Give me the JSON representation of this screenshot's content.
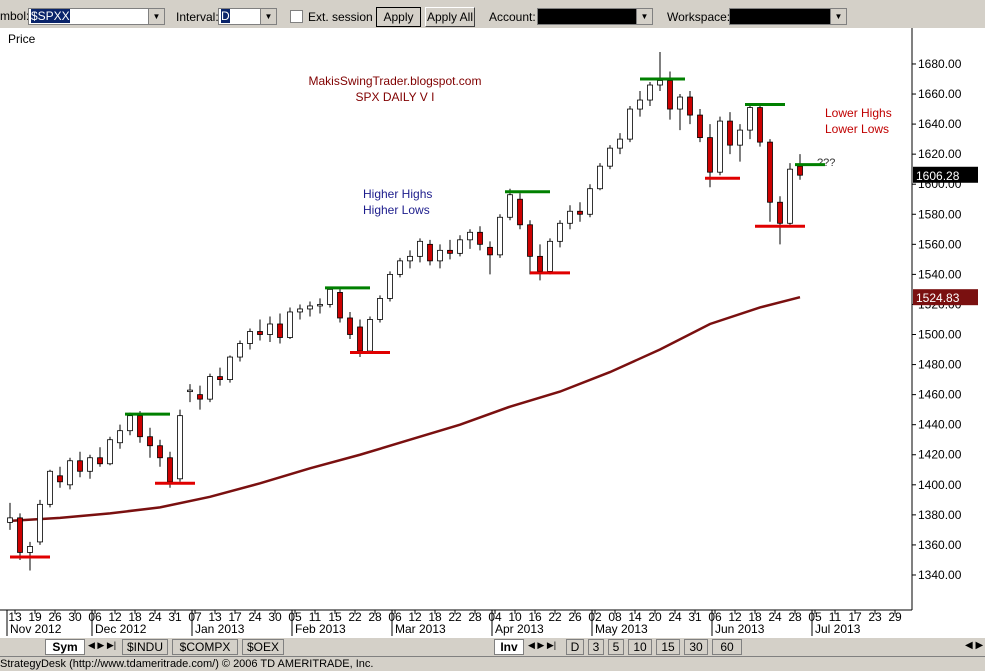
{
  "toolbar": {
    "symbol_label": "mbol:",
    "symbol": "$SPXX",
    "interval_label": "Interval:",
    "interval": "D",
    "ext_session": "Ext. session",
    "apply": "Apply",
    "apply_all": "Apply All",
    "account_label": "Account:",
    "workspace_label": "Workspace:"
  },
  "tabs": {
    "left": [
      "Sym",
      "$INDU",
      "$COMPX",
      "$OEX"
    ],
    "inv": "Inv",
    "intervals": [
      "D",
      "3",
      "5",
      "10",
      "15",
      "30",
      "60"
    ]
  },
  "status": "StrategyDesk (http://www.tdameritrade.com/) © 2006 TD AMERITRADE, Inc.",
  "chart_data": {
    "type": "candlestick",
    "y_label": "Price",
    "annotations": {
      "blog": "MakisSwingTrader.blogspot.com",
      "title": "SPX DAILY  V I",
      "higher_highs": "Higher Highs",
      "higher_lows": "Higher Lows",
      "lower_highs": "Lower Highs",
      "lower_lows": "Lower Lows",
      "question": "???"
    },
    "up_color": "#ffffff",
    "down_color": "#cc0000",
    "x": [
      0,
      2,
      4,
      6,
      8,
      10,
      12,
      14,
      16,
      18,
      20,
      22,
      24,
      26,
      28,
      30,
      32,
      34,
      36,
      38,
      40,
      42,
      44,
      46,
      48,
      50,
      52,
      54,
      56,
      58,
      60,
      62,
      64,
      66,
      68,
      70,
      72,
      74,
      76,
      78,
      80,
      82,
      84,
      86,
      88,
      90,
      92,
      94,
      96,
      98,
      100,
      102,
      104,
      106,
      108,
      110,
      112,
      114,
      116,
      118,
      120,
      122,
      124,
      126,
      128,
      130,
      132,
      134,
      136,
      138,
      140,
      142,
      144,
      146,
      148,
      150,
      152,
      154,
      156,
      158
    ],
    "open": [
      1375,
      1378,
      1355,
      1362,
      1387,
      1406,
      1400,
      1416,
      1409,
      1418,
      1414,
      1428,
      1436,
      1446,
      1432,
      1426,
      1418,
      1404,
      1462,
      1460,
      1457,
      1472,
      1470,
      1485,
      1494,
      1502,
      1500,
      1507,
      1498,
      1515,
      1517,
      1519,
      1520,
      1528,
      1511,
      1505,
      1489,
      1510,
      1524,
      1540,
      1549,
      1552,
      1560,
      1549,
      1556,
      1554,
      1563,
      1568,
      1558,
      1553,
      1578,
      1590,
      1573,
      1552,
      1542,
      1562,
      1574,
      1582,
      1580,
      1597,
      1612,
      1624,
      1630,
      1650,
      1656,
      1666,
      1669,
      1650,
      1658,
      1646,
      1631,
      1608,
      1642,
      1626,
      1636,
      1651,
      1628,
      1588,
      1574,
      1612
    ],
    "high": [
      1388,
      1381,
      1362,
      1390,
      1410,
      1412,
      1418,
      1422,
      1420,
      1425,
      1432,
      1440,
      1448,
      1449,
      1438,
      1430,
      1422,
      1450,
      1467,
      1466,
      1474,
      1478,
      1486,
      1496,
      1504,
      1510,
      1512,
      1514,
      1518,
      1520,
      1522,
      1524,
      1531,
      1531,
      1515,
      1510,
      1512,
      1526,
      1542,
      1551,
      1556,
      1564,
      1563,
      1560,
      1563,
      1566,
      1570,
      1572,
      1562,
      1580,
      1597,
      1594,
      1576,
      1560,
      1564,
      1576,
      1586,
      1588,
      1600,
      1614,
      1626,
      1634,
      1652,
      1662,
      1668,
      1688,
      1675,
      1660,
      1662,
      1650,
      1640,
      1645,
      1648,
      1640,
      1652,
      1654,
      1630,
      1592,
      1614,
      1620
    ],
    "low": [
      1370,
      1350,
      1343,
      1360,
      1385,
      1398,
      1397,
      1405,
      1404,
      1412,
      1413,
      1424,
      1433,
      1428,
      1418,
      1412,
      1398,
      1402,
      1455,
      1450,
      1455,
      1466,
      1468,
      1482,
      1490,
      1496,
      1495,
      1494,
      1497,
      1510,
      1512,
      1514,
      1518,
      1508,
      1497,
      1485,
      1488,
      1508,
      1522,
      1538,
      1544,
      1548,
      1546,
      1544,
      1550,
      1552,
      1557,
      1556,
      1540,
      1551,
      1576,
      1570,
      1540,
      1536,
      1540,
      1558,
      1570,
      1575,
      1578,
      1596,
      1610,
      1620,
      1628,
      1645,
      1652,
      1662,
      1643,
      1636,
      1640,
      1628,
      1598,
      1606,
      1620,
      1615,
      1630,
      1625,
      1575,
      1560,
      1573,
      1603
    ],
    "close": [
      1378,
      1355,
      1359,
      1387,
      1409,
      1402,
      1416,
      1409,
      1418,
      1414,
      1430,
      1436,
      1446,
      1432,
      1426,
      1418,
      1402,
      1446,
      1463,
      1457,
      1472,
      1470,
      1485,
      1494,
      1502,
      1500,
      1507,
      1498,
      1515,
      1517,
      1519,
      1520,
      1530,
      1511,
      1500,
      1489,
      1510,
      1524,
      1540,
      1549,
      1552,
      1562,
      1549,
      1556,
      1554,
      1563,
      1568,
      1560,
      1553,
      1578,
      1593,
      1573,
      1552,
      1542,
      1562,
      1574,
      1582,
      1580,
      1597,
      1612,
      1624,
      1630,
      1650,
      1656,
      1666,
      1669,
      1650,
      1658,
      1646,
      1631,
      1608,
      1642,
      1626,
      1636,
      1651,
      1628,
      1588,
      1574,
      1610,
      1606
    ],
    "last_price": 1606.28,
    "moving_average": {
      "color": "#7a1010",
      "x": [
        0,
        10,
        20,
        30,
        40,
        50,
        60,
        70,
        80,
        90,
        100,
        110,
        120,
        130,
        140,
        150,
        158
      ],
      "values": [
        1376,
        1378,
        1381,
        1385,
        1392,
        1401,
        1411,
        1420,
        1430,
        1440,
        1452,
        1462,
        1475,
        1490,
        1507,
        1518,
        1524.83
      ]
    },
    "levels": [
      {
        "value": 1352,
        "x0": 0,
        "x1": 8,
        "color": "#e00000"
      },
      {
        "value": 1447,
        "x0": 23,
        "x1": 32,
        "color": "#008000"
      },
      {
        "value": 1401,
        "x0": 29,
        "x1": 37,
        "color": "#e00000"
      },
      {
        "value": 1531,
        "x0": 63,
        "x1": 72,
        "color": "#008000"
      },
      {
        "value": 1488,
        "x0": 68,
        "x1": 76,
        "color": "#e00000"
      },
      {
        "value": 1595,
        "x0": 99,
        "x1": 108,
        "color": "#008000"
      },
      {
        "value": 1541,
        "x0": 104,
        "x1": 112,
        "color": "#e00000"
      },
      {
        "value": 1670,
        "x0": 126,
        "x1": 135,
        "color": "#008000"
      },
      {
        "value": 1604,
        "x0": 139,
        "x1": 146,
        "color": "#e00000"
      },
      {
        "value": 1653,
        "x0": 147,
        "x1": 155,
        "color": "#008000"
      },
      {
        "value": 1572,
        "x0": 149,
        "x1": 159,
        "color": "#e00000"
      },
      {
        "value": 1613,
        "x0": 157,
        "x1": 163,
        "color": "#008000"
      }
    ],
    "ylim": [
      1318.7,
      1702.6
    ],
    "yticks": [
      {
        "value": 1340,
        "label": "1340.00"
      },
      {
        "value": 1360,
        "label": "1360.00"
      },
      {
        "value": 1380,
        "label": "1380.00"
      },
      {
        "value": 1400,
        "label": "1400.00"
      },
      {
        "value": 1420,
        "label": "1420.00"
      },
      {
        "value": 1440,
        "label": "1440.00"
      },
      {
        "value": 1460,
        "label": "1460.00"
      },
      {
        "value": 1480,
        "label": "1480.00"
      },
      {
        "value": 1500,
        "label": "1500.00"
      },
      {
        "value": 1520,
        "label": "1520.00"
      },
      {
        "value": 1540,
        "label": "1540.00"
      },
      {
        "value": 1560,
        "label": "1560.00"
      },
      {
        "value": 1580,
        "label": "1580.00"
      },
      {
        "value": 1600,
        "label": "1600.00"
      },
      {
        "value": 1620,
        "label": "1620.00"
      },
      {
        "value": 1640,
        "label": "1640.00"
      },
      {
        "value": 1660,
        "label": "1660.00"
      },
      {
        "value": 1680,
        "label": "1680.00"
      }
    ],
    "xlim": [
      -1,
      180
    ],
    "xticks": [
      {
        "value": 1,
        "label": "13"
      },
      {
        "value": 5,
        "label": "19"
      },
      {
        "value": 9,
        "label": "26"
      },
      {
        "value": 13,
        "label": "30"
      },
      {
        "value": 17,
        "label": "06"
      },
      {
        "value": 21,
        "label": "12"
      },
      {
        "value": 25,
        "label": "18"
      },
      {
        "value": 29,
        "label": "24"
      },
      {
        "value": 33,
        "label": "31"
      },
      {
        "value": 37,
        "label": "07"
      },
      {
        "value": 41,
        "label": "13"
      },
      {
        "value": 45,
        "label": "17"
      },
      {
        "value": 49,
        "label": "24"
      },
      {
        "value": 53,
        "label": "30"
      },
      {
        "value": 57,
        "label": "05"
      },
      {
        "value": 61,
        "label": "11"
      },
      {
        "value": 65,
        "label": "15"
      },
      {
        "value": 69,
        "label": "22"
      },
      {
        "value": 73,
        "label": "28"
      },
      {
        "value": 77,
        "label": "06"
      },
      {
        "value": 81,
        "label": "12"
      },
      {
        "value": 85,
        "label": "18"
      },
      {
        "value": 89,
        "label": "22"
      },
      {
        "value": 93,
        "label": "28"
      },
      {
        "value": 97,
        "label": "04"
      },
      {
        "value": 101,
        "label": "10"
      },
      {
        "value": 105,
        "label": "16"
      },
      {
        "value": 109,
        "label": "22"
      },
      {
        "value": 113,
        "label": "26"
      },
      {
        "value": 117,
        "label": "02"
      },
      {
        "value": 121,
        "label": "08"
      },
      {
        "value": 125,
        "label": "14"
      },
      {
        "value": 129,
        "label": "20"
      },
      {
        "value": 133,
        "label": "24"
      },
      {
        "value": 137,
        "label": "31"
      },
      {
        "value": 141,
        "label": "06"
      },
      {
        "value": 145,
        "label": "12"
      },
      {
        "value": 149,
        "label": "18"
      },
      {
        "value": 153,
        "label": "24"
      },
      {
        "value": 157,
        "label": "28"
      },
      {
        "value": 161,
        "label": "05"
      },
      {
        "value": 165,
        "label": "11"
      },
      {
        "value": 169,
        "label": "17"
      },
      {
        "value": 173,
        "label": "23"
      },
      {
        "value": 177,
        "label": "29"
      }
    ],
    "months": [
      {
        "value": 0,
        "label": "Nov 2012"
      },
      {
        "value": 17,
        "label": "Dec 2012"
      },
      {
        "value": 37,
        "label": "Jan 2013"
      },
      {
        "value": 57,
        "label": "Feb 2013"
      },
      {
        "value": 77,
        "label": "Mar 2013"
      },
      {
        "value": 97,
        "label": "Apr 2013"
      },
      {
        "value": 117,
        "label": "May 2013"
      },
      {
        "value": 141,
        "label": "Jun 2013"
      },
      {
        "value": 161,
        "label": "Jul 2013"
      }
    ]
  }
}
